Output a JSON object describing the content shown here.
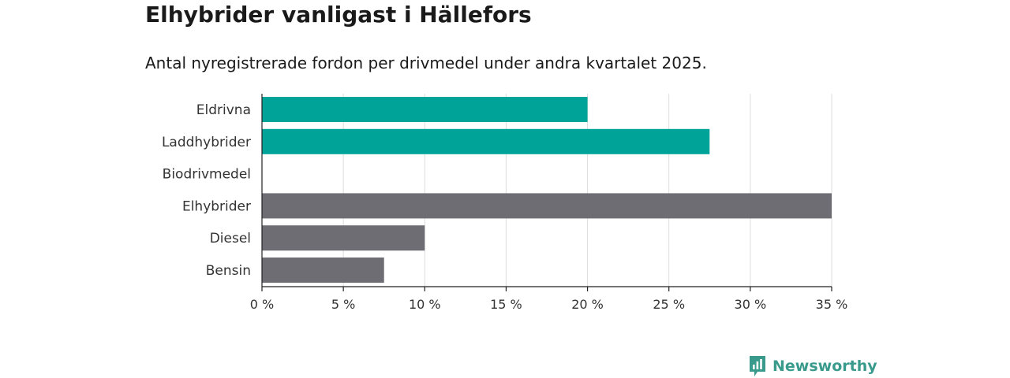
{
  "header": {
    "title": "Elhybrider vanligast i Hällefors",
    "subtitle": "Antal nyregistrerade fordon per drivmedel under andra kvartalet 2025."
  },
  "brand": {
    "name": "Newsworthy",
    "icon": "newsworthy-logo-icon",
    "color": "#3a9a8c"
  },
  "chart_data": {
    "type": "bar",
    "orientation": "horizontal",
    "categories": [
      "Eldrivna",
      "Laddhybrider",
      "Biodrivmedel",
      "Elhybrider",
      "Diesel",
      "Bensin"
    ],
    "values": [
      20.0,
      27.5,
      0,
      35.0,
      10.0,
      7.5
    ],
    "colors": [
      "#00a398",
      "#00a398",
      "#00a398",
      "#6e6d73",
      "#6e6d73",
      "#6e6d73"
    ],
    "xlim": [
      0,
      35
    ],
    "x_ticks": [
      0,
      5,
      10,
      15,
      20,
      25,
      30,
      35
    ],
    "x_tick_labels": [
      "0 %",
      "5 %",
      "10 %",
      "15 %",
      "20 %",
      "25 %",
      "30 %",
      "35 %"
    ],
    "xlabel": "",
    "ylabel": "",
    "grid": true
  }
}
